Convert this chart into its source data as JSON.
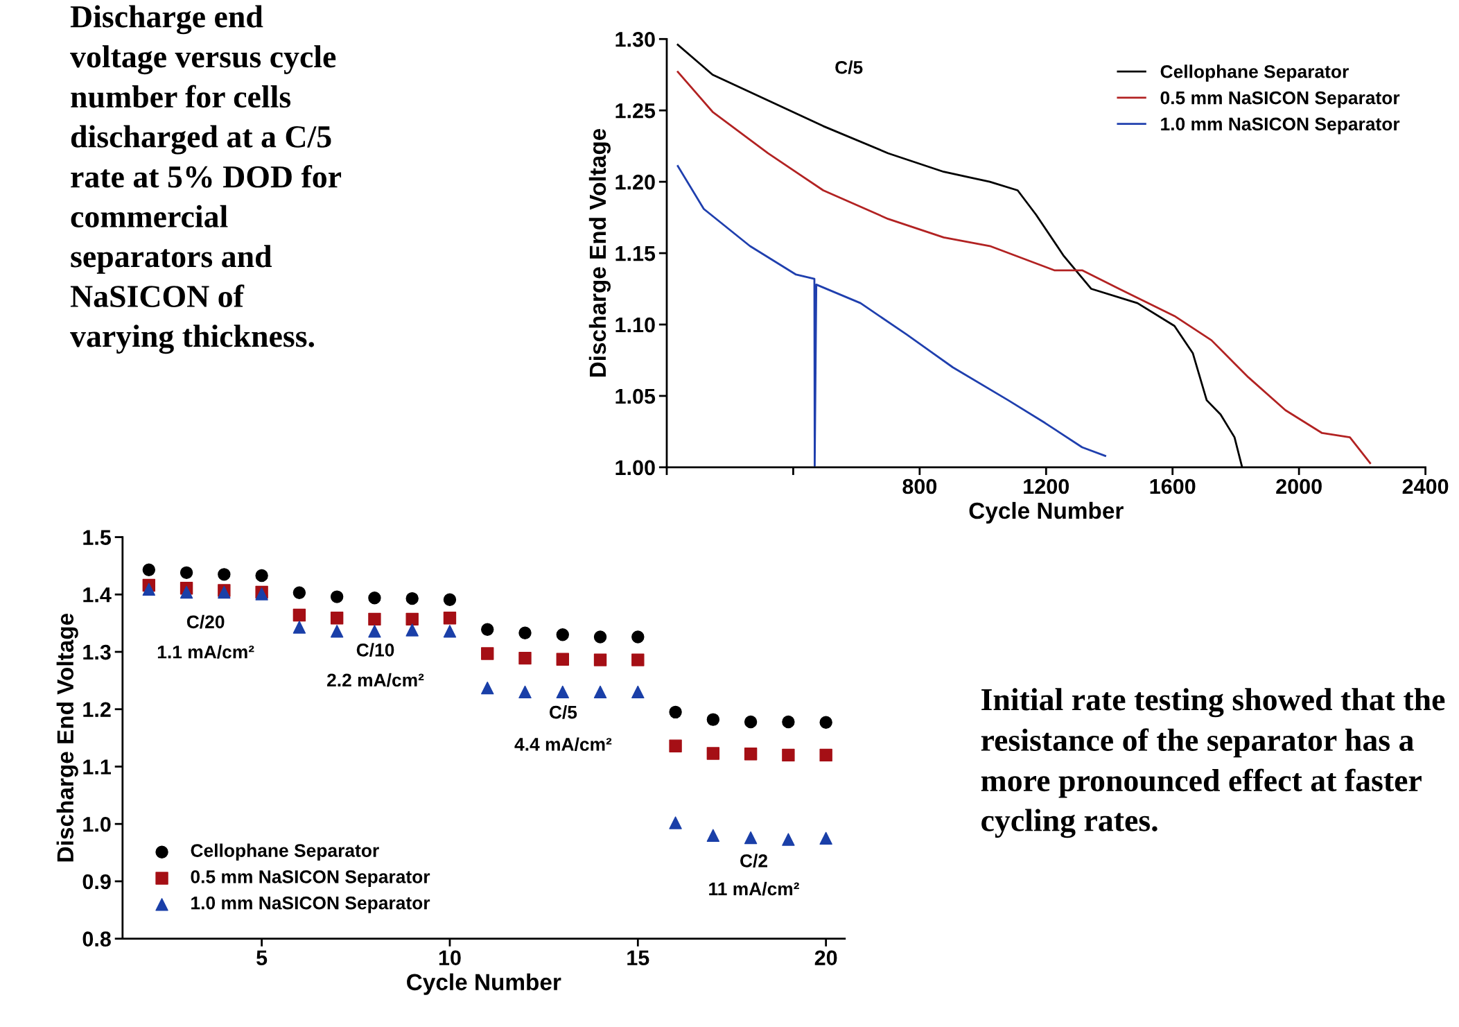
{
  "chart_data": [
    {
      "type": "line",
      "xlabel": "Cycle Number",
      "ylabel": "Discharge End Voltage",
      "xlim": [
        0,
        2400
      ],
      "xticks": [
        {
          "value": 0,
          "label": null
        },
        {
          "value": 400,
          "label": null
        },
        800,
        1200,
        1600,
        2000,
        2400
      ],
      "ylim": [
        1.0,
        1.3
      ],
      "yticks": [
        {
          "value": 1.0,
          "label": "1.00"
        },
        {
          "value": 1.05,
          "label": "1.05"
        },
        {
          "value": 1.1,
          "label": "1.10"
        },
        {
          "value": 1.15,
          "label": "1.15"
        },
        {
          "value": 1.2,
          "label": "1.20"
        },
        {
          "value": 1.25,
          "label": "1.25"
        },
        {
          "value": 1.3,
          "label": "1.30"
        }
      ],
      "legend": "top right",
      "grid": false,
      "annotations": [
        "C/5",
        "Discharge end\nvoltage versus cycle\nnumber for cells\ndischarged at a C/5\nrate at 5% DOD for\ncommercial\nseparators and\nNaSICON of\nvarying thickness."
      ],
      "series": [
        {
          "name": "Cellophane Separator",
          "color": "#000000",
          "x": [
            35,
            145,
            320,
            495,
            700,
            876,
            1022,
            1110,
            1168,
            1256,
            1343,
            1489,
            1606,
            1664,
            1708,
            1752,
            1796,
            1819
          ],
          "values": [
            1.296,
            1.275,
            1.257,
            1.239,
            1.22,
            1.207,
            1.2,
            1.194,
            1.177,
            1.148,
            1.125,
            1.115,
            1.099,
            1.08,
            1.047,
            1.037,
            1.021,
            1.001
          ]
        },
        {
          "name": "0.5 mm NaSICON Separator",
          "color": "#b22222",
          "x": [
            35,
            145,
            320,
            495,
            700,
            876,
            1022,
            1226,
            1314,
            1431,
            1606,
            1723,
            1840,
            1957,
            2073,
            2161,
            2225
          ],
          "values": [
            1.277,
            1.249,
            1.22,
            1.194,
            1.174,
            1.161,
            1.155,
            1.138,
            1.138,
            1.125,
            1.106,
            1.089,
            1.063,
            1.04,
            1.024,
            1.021,
            1.003
          ]
        },
        {
          "name": "1.0 mm NaSICON Separator",
          "color": "#1f3fae",
          "x": [
            35,
            117,
            263,
            409,
            467,
            468,
            473,
            613,
            759,
            905,
            1080,
            1197,
            1314,
            1387
          ],
          "values": [
            1.211,
            1.181,
            1.155,
            1.135,
            1.132,
            1.001,
            1.128,
            1.115,
            1.093,
            1.07,
            1.047,
            1.031,
            1.014,
            1.008
          ]
        }
      ]
    },
    {
      "type": "scatter",
      "xlabel": "Cycle Number",
      "ylabel": "Discharge End Voltage",
      "xlim": [
        1.3,
        20.5
      ],
      "xticks": [
        5,
        10,
        15,
        20
      ],
      "ylim": [
        0.8,
        1.5
      ],
      "yticks": [
        {
          "value": 0.8,
          "label": "0.8"
        },
        {
          "value": 0.9,
          "label": "0.9"
        },
        {
          "value": 1.0,
          "label": "1.0"
        },
        {
          "value": 1.1,
          "label": "1.1"
        },
        {
          "value": 1.2,
          "label": "1.2"
        },
        {
          "value": 1.3,
          "label": "1.3"
        },
        {
          "value": 1.4,
          "label": "1.4"
        },
        {
          "value": 1.5,
          "label": "1.5"
        }
      ],
      "legend": "bottom left",
      "grid": false,
      "x": [
        2,
        3,
        4,
        5,
        6,
        7,
        8,
        9,
        10,
        11,
        12,
        13,
        14,
        15,
        16,
        17,
        18,
        19,
        20
      ],
      "annotations": [
        "C/20",
        "1.1 mA/cm²",
        "C/10",
        "2.2 mA/cm²",
        "C/5",
        "4.4 mA/cm²",
        "C/2",
        "11 mA/cm²",
        "Initial rate testing showed that the resistance of the separator has a more pronounced effect at faster cycling rates."
      ],
      "series": [
        {
          "name": "Cellophane Separator",
          "color": "#000000",
          "marker": "circle",
          "values": [
            1.443,
            1.438,
            1.435,
            1.433,
            1.403,
            1.396,
            1.394,
            1.393,
            1.391,
            1.339,
            1.333,
            1.33,
            1.326,
            1.326,
            1.195,
            1.182,
            1.178,
            1.178,
            1.177
          ]
        },
        {
          "name": "0.5 mm NaSICON Separator",
          "color": "#a50f15",
          "marker": "square",
          "values": [
            1.416,
            1.411,
            1.407,
            1.404,
            1.364,
            1.359,
            1.357,
            1.357,
            1.359,
            1.297,
            1.289,
            1.287,
            1.286,
            1.286,
            1.136,
            1.123,
            1.122,
            1.12,
            1.12
          ]
        },
        {
          "name": "1.0 mm NaSICON Separator",
          "color": "#1a3fa8",
          "marker": "triangle",
          "values": [
            1.409,
            1.404,
            1.404,
            1.401,
            1.343,
            1.336,
            1.336,
            1.338,
            1.336,
            1.237,
            1.23,
            1.23,
            1.23,
            1.23,
            1.002,
            0.98,
            0.976,
            0.973,
            0.975
          ]
        }
      ]
    }
  ]
}
